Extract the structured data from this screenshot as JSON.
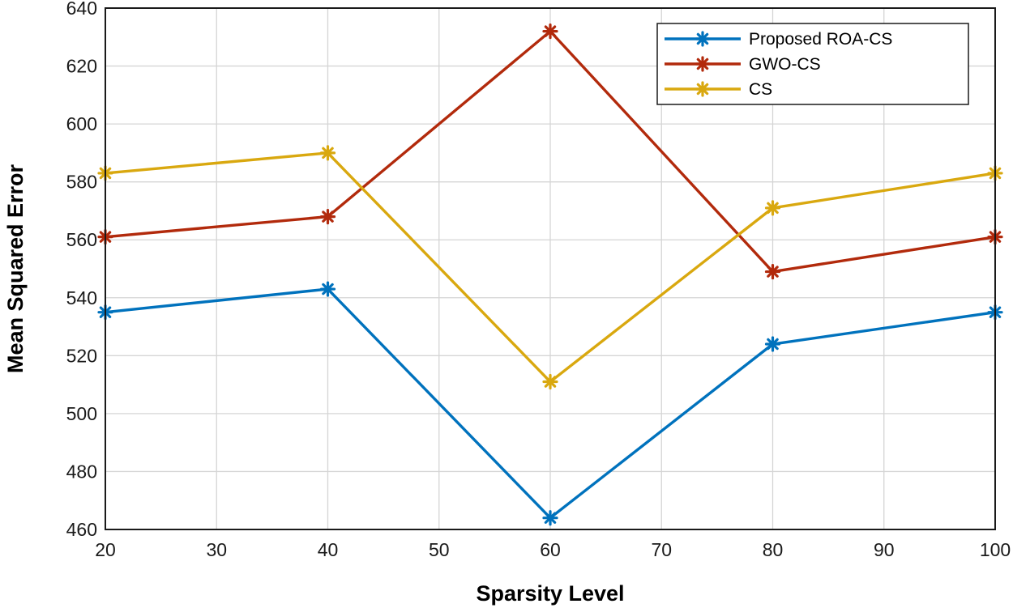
{
  "chart_data": {
    "type": "line",
    "title": "",
    "xlabel": "Sparsity Level",
    "ylabel": "Mean Squared Error",
    "x": [
      20,
      40,
      60,
      80,
      100
    ],
    "xlim": [
      20,
      100
    ],
    "ylim": [
      460,
      640
    ],
    "xticks": [
      "20",
      "30",
      "40",
      "50",
      "60",
      "70",
      "80",
      "90",
      "100"
    ],
    "yticks": [
      "460",
      "480",
      "500",
      "520",
      "540",
      "560",
      "580",
      "600",
      "620",
      "640"
    ],
    "grid": true,
    "legend_position": "top-right",
    "series": [
      {
        "name": "Proposed ROA-CS",
        "color": "#0072bd",
        "marker": "asterisk",
        "values": [
          535,
          543,
          464,
          524,
          535
        ]
      },
      {
        "name": "GWO-CS",
        "color": "#b22a0c",
        "marker": "asterisk",
        "values": [
          561,
          568,
          632,
          549,
          561
        ]
      },
      {
        "name": "CS",
        "color": "#d9a80f",
        "marker": "asterisk",
        "values": [
          583,
          590,
          511,
          571,
          583
        ]
      }
    ]
  }
}
